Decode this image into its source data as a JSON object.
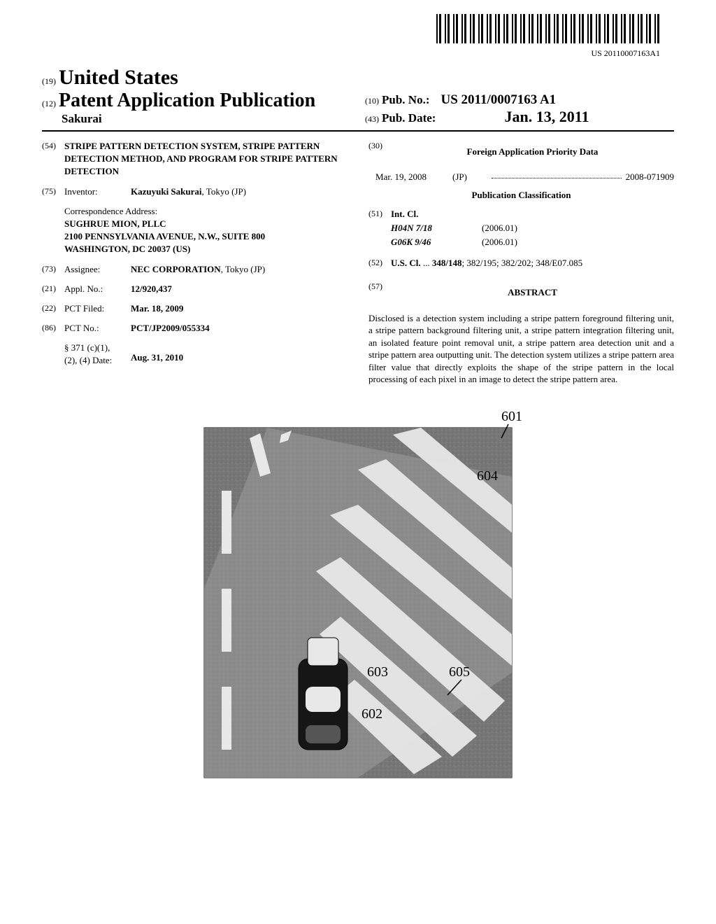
{
  "barcode_text": "US 20110007163A1",
  "header": {
    "country_num": "(19)",
    "country": "United States",
    "doctype_num": "(12)",
    "doctype": "Patent Application Publication",
    "author": "Sakurai",
    "pubno_num": "(10)",
    "pubno_label": "Pub. No.:",
    "pubno_val": "US 2011/0007163 A1",
    "pubdate_num": "(43)",
    "pubdate_label": "Pub. Date:",
    "pubdate_val": "Jan. 13, 2011"
  },
  "left": {
    "title_num": "(54)",
    "title": "STRIPE PATTERN DETECTION SYSTEM, STRIPE PATTERN DETECTION METHOD, AND PROGRAM FOR STRIPE PATTERN DETECTION",
    "inventor_num": "(75)",
    "inventor_label": "Inventor:",
    "inventor_val_bold": "Kazuyuki Sakurai",
    "inventor_val_rest": ", Tokyo (JP)",
    "corr_label": "Correspondence Address:",
    "corr_name": "SUGHRUE MION, PLLC",
    "corr_addr1": "2100 PENNSYLVANIA AVENUE, N.W., SUITE 800",
    "corr_addr2": "WASHINGTON, DC 20037 (US)",
    "assignee_num": "(73)",
    "assignee_label": "Assignee:",
    "assignee_val_bold": "NEC CORPORATION",
    "assignee_val_rest": ", Tokyo (JP)",
    "applno_num": "(21)",
    "applno_label": "Appl. No.:",
    "applno_val": "12/920,437",
    "pctfiled_num": "(22)",
    "pctfiled_label": "PCT Filed:",
    "pctfiled_val": "Mar. 18, 2009",
    "pctno_num": "(86)",
    "pctno_label": "PCT No.:",
    "pctno_val": "PCT/JP2009/055334",
    "s371_label": "§ 371 (c)(1),\n(2), (4) Date:",
    "s371_val": "Aug. 31, 2010"
  },
  "right": {
    "foreign_num": "(30)",
    "foreign_heading": "Foreign Application Priority Data",
    "foreign_date": "Mar. 19, 2008",
    "foreign_cc": "(JP)",
    "foreign_appno": "2008-071909",
    "pubclass_heading": "Publication Classification",
    "intcl_num": "(51)",
    "intcl_label": "Int. Cl.",
    "intcl_rows": [
      {
        "code": "H04N  7/18",
        "ver": "(2006.01)"
      },
      {
        "code": "G06K  9/46",
        "ver": "(2006.01)"
      }
    ],
    "uscl_num": "(52)",
    "uscl_label": "U.S. Cl.",
    "uscl_val": "348/148; 382/195; 382/202; 348/E07.085",
    "abstract_num": "(57)",
    "abstract_heading": "ABSTRACT",
    "abstract_text": "Disclosed is a detection system including a stripe pattern foreground filtering unit, a stripe pattern background filtering unit, a stripe pattern integration filtering unit, an isolated feature point removal unit, a stripe pattern area detection unit and a stripe pattern area outputting unit. The detection system utilizes a stripe pattern area filter value that directly exploits the shape of the stripe pattern in the local processing of each pixel in an image to detect the stripe pattern area."
  },
  "figure": {
    "labels": {
      "l601": "601",
      "l602": "602",
      "l603": "603",
      "l604": "604",
      "l605": "605"
    },
    "colors": {
      "ground": "#7a7a7a",
      "road": "#555555",
      "stripe": "#f0f0f0",
      "car_body": "#1a1a1a",
      "outline": "#000000"
    }
  }
}
